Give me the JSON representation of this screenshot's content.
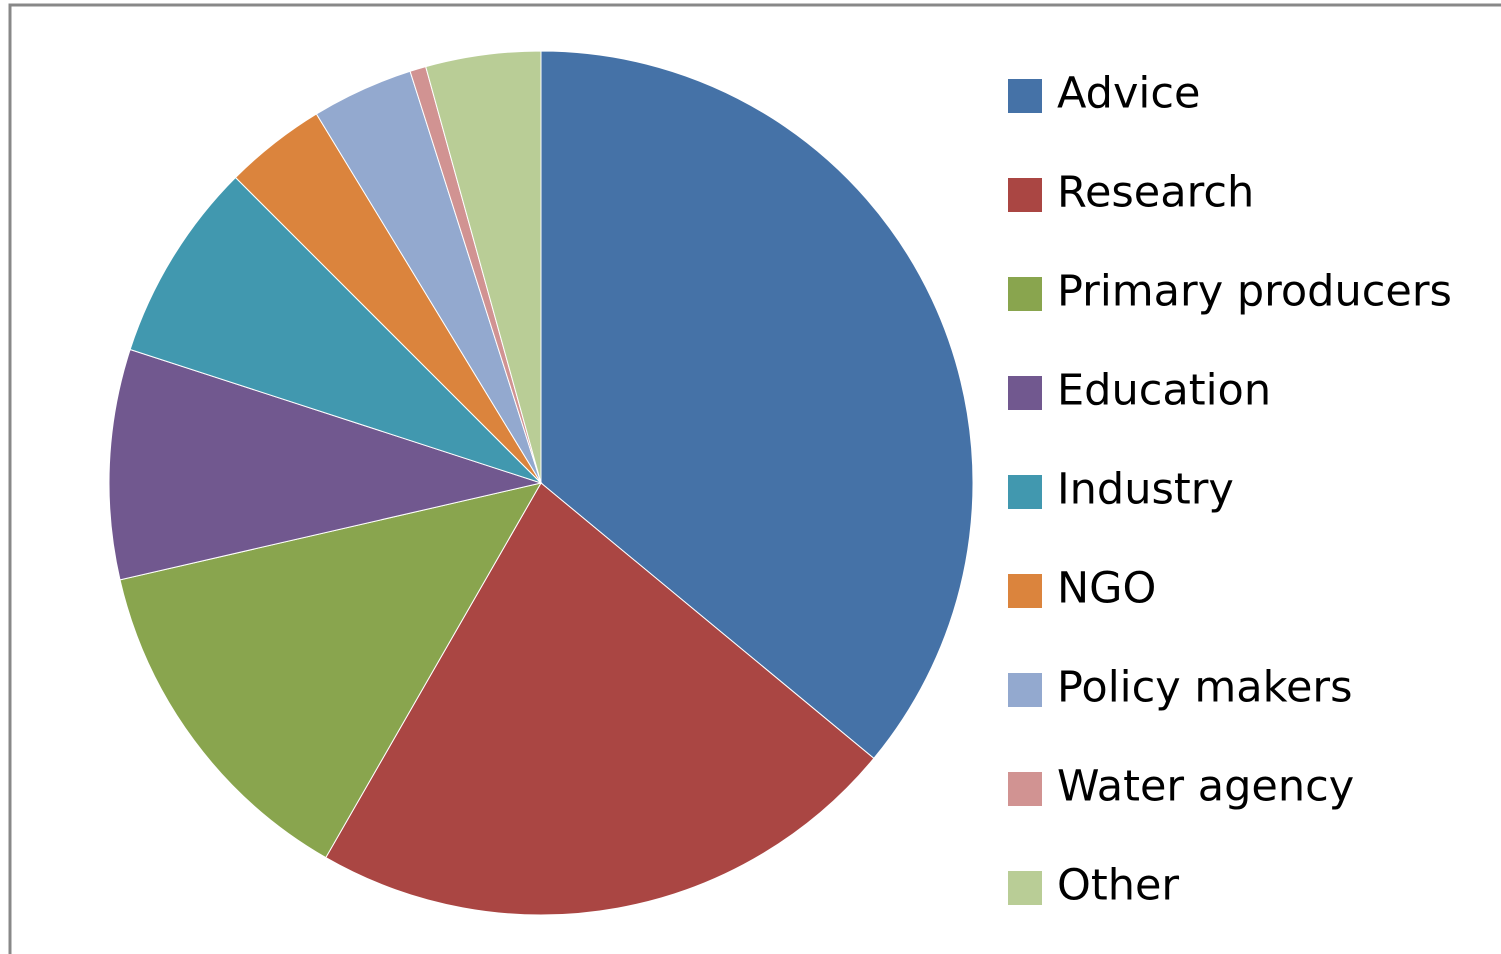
{
  "chart_data": {
    "type": "pie",
    "categories": [
      "Advice",
      "Research",
      "Primary producers",
      "Education",
      "Industry",
      "NGO",
      "Policy makers",
      "Water agency",
      "Other"
    ],
    "values": [
      36.0,
      22.3,
      13.1,
      8.6,
      7.5,
      3.8,
      3.8,
      0.6,
      4.3
    ],
    "colors": [
      "#4572a7",
      "#aa4643",
      "#89a54e",
      "#71588f",
      "#4198af",
      "#db843d",
      "#93a9cf",
      "#d19392",
      "#b9cd96"
    ],
    "legend": "right"
  }
}
